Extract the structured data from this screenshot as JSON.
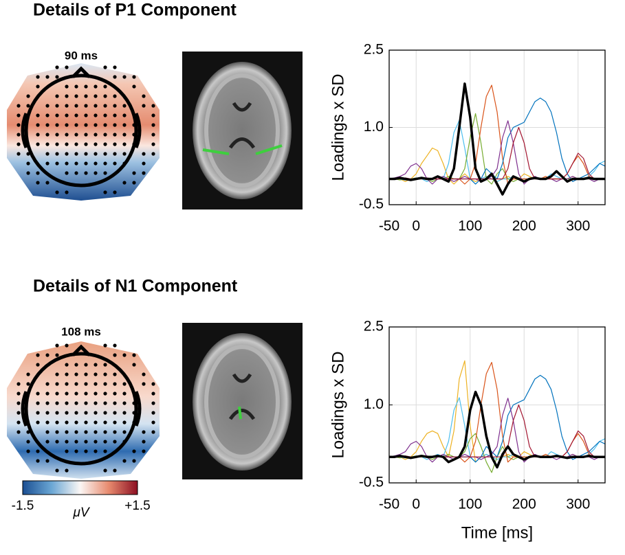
{
  "panels": [
    {
      "title": "Details of P1 Component",
      "time_label": "90 ms"
    },
    {
      "title": "Details of N1 Component",
      "time_label": "108 ms"
    }
  ],
  "colorbar": {
    "min": -1.5,
    "max": {
      "value": 1.5,
      "label": "+1.5"
    },
    "unit": "μV"
  },
  "chart_data": [
    {
      "type": "line",
      "ylabel": "Loadings x SD",
      "xlim": [
        -50,
        350
      ],
      "xticks": [
        -50,
        0,
        100,
        200,
        300
      ],
      "ylim": [
        -0.5,
        2.5
      ],
      "yticks": [
        -0.5,
        {
          "value": 1,
          "label": "1.0"
        },
        2.5
      ],
      "grid": true,
      "x": [
        -50,
        -40,
        -30,
        -20,
        -10,
        0,
        10,
        20,
        30,
        40,
        50,
        60,
        70,
        80,
        90,
        100,
        110,
        120,
        130,
        140,
        150,
        160,
        170,
        180,
        190,
        200,
        210,
        220,
        230,
        240,
        250,
        260,
        270,
        280,
        290,
        300,
        310,
        320,
        330,
        340,
        350
      ],
      "series": [
        {
          "color": "#edb120",
          "values": [
            0,
            0.02,
            0,
            -0.05,
            0,
            0.1,
            0.3,
            0.45,
            0.6,
            0.55,
            0.3,
            0,
            -0.1,
            0,
            0.1,
            0,
            -0.05,
            0,
            0.05,
            0,
            -0.05,
            0,
            0.05,
            0,
            0,
            0.1,
            0.05,
            0,
            0,
            0.02,
            0,
            0,
            0,
            0,
            0.05,
            0,
            0,
            0,
            0,
            0,
            0
          ]
        },
        {
          "color": "#4dbeee",
          "values": [
            0,
            0,
            0,
            0.02,
            0,
            0,
            0,
            -0.05,
            0,
            0.05,
            0,
            0.3,
            0.9,
            1.14,
            0.6,
            0,
            -0.1,
            0,
            0.05,
            0,
            -0.05,
            0,
            0,
            0.05,
            0,
            0,
            0,
            0,
            0,
            0,
            0.1,
            0.05,
            0,
            0,
            0,
            0,
            0,
            0.05,
            0.15,
            0.3,
            0.35
          ]
        },
        {
          "color": "#77ac30",
          "values": [
            0,
            0,
            -0.02,
            0,
            0,
            0.02,
            0,
            0,
            -0.05,
            0,
            0,
            0.05,
            0,
            0,
            0.2,
            0.8,
            1.27,
            0.7,
            0,
            -0.1,
            0.1,
            0.2,
            0,
            -0.05,
            0,
            0,
            0,
            0.02,
            0,
            0,
            0,
            0,
            0,
            0,
            0,
            0,
            0,
            0,
            0,
            0,
            0
          ]
        },
        {
          "color": "#d95319",
          "values": [
            0,
            0,
            0,
            0,
            0,
            0,
            0,
            0,
            0,
            0,
            0,
            0,
            0,
            0,
            -0.1,
            0,
            0.3,
            1.0,
            1.6,
            1.82,
            1.3,
            0.4,
            -0.1,
            0,
            0,
            0,
            0,
            0,
            0,
            0.05,
            0,
            0,
            0,
            0.1,
            0.3,
            0.45,
            0.3,
            0.05,
            0,
            0,
            0
          ]
        },
        {
          "color": "#0072bd",
          "values": [
            0,
            0.02,
            0,
            -0.02,
            0,
            0,
            0.02,
            0,
            0,
            0,
            0,
            0,
            0,
            0,
            0,
            0,
            -0.1,
            0,
            0.2,
            0.1,
            0,
            0.3,
            0.8,
            1.0,
            1.05,
            1.1,
            1.3,
            1.5,
            1.57,
            1.5,
            1.3,
            0.9,
            0.4,
            0.1,
            -0.05,
            0,
            0.05,
            0.1,
            0.2,
            0.3,
            0.25
          ]
        },
        {
          "color": "#7e2f8e",
          "values": [
            0,
            0.02,
            0.05,
            0.1,
            0.25,
            0.3,
            0.2,
            0,
            -0.1,
            0,
            0.05,
            0,
            -0.05,
            0,
            0.05,
            0,
            0,
            -0.05,
            0,
            0.05,
            0.2,
            0.8,
            1.13,
            0.7,
            0.1,
            -0.1,
            0,
            0.05,
            0,
            0,
            0,
            -0.05,
            0,
            0,
            0.05,
            0,
            0,
            0,
            -0.05,
            0,
            0
          ]
        },
        {
          "color": "#a2142f",
          "values": [
            0,
            0,
            0,
            0.02,
            0,
            0,
            0,
            0.02,
            0,
            0,
            0,
            0,
            0,
            0,
            0,
            0,
            0,
            0,
            0,
            0,
            0,
            0,
            0.2,
            0.7,
            1.0,
            0.7,
            0.2,
            0,
            0,
            0,
            0,
            0,
            0,
            0.1,
            0.3,
            0.5,
            0.4,
            0.1,
            0,
            0,
            0
          ]
        },
        {
          "color": "#000000",
          "values": [
            0,
            0,
            0.02,
            0,
            -0.02,
            0,
            0.02,
            0,
            0,
            0.05,
            0,
            -0.05,
            0.2,
            1.0,
            1.85,
            1.2,
            0.2,
            -0.05,
            0,
            0.1,
            -0.1,
            -0.3,
            -0.1,
            0.05,
            0,
            -0.05,
            0,
            0.02,
            0,
            0,
            0.05,
            0.15,
            0.05,
            -0.05,
            0,
            0,
            0,
            0.02,
            0,
            0,
            0
          ]
        }
      ]
    },
    {
      "type": "line",
      "ylabel": "Loadings x SD",
      "xlabel": "Time [ms]",
      "xlim": [
        -50,
        350
      ],
      "xticks": [
        -50,
        0,
        100,
        200,
        300
      ],
      "ylim": [
        -0.5,
        2.5
      ],
      "yticks": [
        -0.5,
        {
          "value": 1,
          "label": "1.0"
        },
        2.5
      ],
      "grid": true,
      "x": [
        -50,
        -40,
        -30,
        -20,
        -10,
        0,
        10,
        20,
        30,
        40,
        50,
        60,
        70,
        80,
        90,
        100,
        110,
        120,
        130,
        140,
        150,
        160,
        170,
        180,
        190,
        200,
        210,
        220,
        230,
        240,
        250,
        260,
        270,
        280,
        290,
        300,
        310,
        320,
        330,
        340,
        350
      ],
      "series": [
        {
          "color": "#edb120",
          "values": [
            0,
            0.02,
            0,
            -0.05,
            0,
            0.1,
            0.3,
            0.45,
            0.5,
            0.45,
            0.2,
            0,
            0.5,
            1.5,
            1.85,
            0.6,
            -0.1,
            0,
            0.05,
            0,
            -0.05,
            0,
            0.05,
            0,
            0,
            0.1,
            0.05,
            0,
            0,
            0.02,
            0,
            0,
            0,
            0,
            0.05,
            0,
            0,
            0,
            0,
            0,
            0
          ]
        },
        {
          "color": "#4dbeee",
          "values": [
            0,
            0,
            0,
            0.02,
            0,
            0,
            0,
            -0.05,
            0,
            0.05,
            0,
            0.3,
            0.9,
            1.14,
            0.6,
            0,
            -0.1,
            0,
            0.05,
            0,
            -0.05,
            0,
            0,
            0.05,
            0,
            0,
            0,
            0,
            0,
            0,
            0.1,
            0.05,
            0,
            0,
            0,
            0,
            0,
            0.05,
            0.15,
            0.3,
            0.35
          ]
        },
        {
          "color": "#77ac30",
          "values": [
            0,
            0,
            -0.02,
            0,
            0,
            0.02,
            0,
            0,
            -0.05,
            0,
            0,
            0.05,
            0,
            0,
            0.1,
            0.35,
            0.45,
            0.2,
            -0.1,
            -0.3,
            0,
            0.2,
            0,
            -0.05,
            0,
            0,
            0,
            0.02,
            0,
            0,
            0,
            0,
            0,
            0,
            0,
            0,
            0,
            0,
            0,
            0,
            0
          ]
        },
        {
          "color": "#d95319",
          "values": [
            0,
            0,
            0,
            0,
            0,
            0,
            0,
            0,
            0,
            0,
            0,
            0,
            0,
            0,
            -0.1,
            0,
            0.3,
            1.0,
            1.6,
            1.82,
            1.3,
            0.4,
            -0.1,
            0,
            0,
            0,
            0,
            0,
            0,
            0.05,
            0,
            0,
            0,
            0.1,
            0.3,
            0.45,
            0.3,
            0.05,
            0,
            0,
            0
          ]
        },
        {
          "color": "#0072bd",
          "values": [
            0,
            0.02,
            0,
            -0.02,
            0,
            0,
            0.02,
            0,
            0,
            0,
            0,
            0,
            0,
            0,
            0,
            0,
            -0.1,
            0,
            0.2,
            0.1,
            0,
            0.3,
            0.8,
            1.0,
            1.05,
            1.1,
            1.3,
            1.5,
            1.57,
            1.5,
            1.3,
            0.9,
            0.4,
            0.1,
            -0.05,
            0,
            0.05,
            0.1,
            0.2,
            0.3,
            0.25
          ]
        },
        {
          "color": "#7e2f8e",
          "values": [
            0,
            0.02,
            0.05,
            0.1,
            0.25,
            0.3,
            0.2,
            0,
            -0.1,
            0,
            0.05,
            0,
            -0.05,
            0,
            0.05,
            0,
            0,
            -0.05,
            0,
            0.05,
            0.2,
            0.8,
            1.13,
            0.7,
            0.1,
            -0.1,
            0,
            0.05,
            0,
            0,
            0,
            -0.05,
            0,
            0,
            0.05,
            0,
            0,
            0,
            -0.05,
            0,
            0
          ]
        },
        {
          "color": "#a2142f",
          "values": [
            0,
            0,
            0,
            0.02,
            0,
            0,
            0,
            0.02,
            0,
            0,
            0,
            0,
            0,
            0,
            0,
            0,
            0,
            0,
            0,
            0,
            0,
            0,
            0.2,
            0.7,
            1.0,
            0.7,
            0.2,
            0,
            0,
            0,
            0,
            0,
            0,
            0.1,
            0.3,
            0.5,
            0.4,
            0.1,
            0,
            0,
            0
          ]
        },
        {
          "color": "#000000",
          "values": [
            0,
            0,
            0.02,
            0,
            -0.02,
            0,
            0.02,
            0,
            0,
            0.02,
            0,
            -0.1,
            -0.05,
            0,
            0.2,
            0.9,
            1.25,
            1.0,
            0.4,
            0,
            -0.2,
            0.05,
            0.2,
            0.05,
            0,
            -0.05,
            0,
            0.02,
            0,
            0,
            0,
            0.02,
            0,
            -0.02,
            0,
            0,
            0,
            0.02,
            0,
            0,
            0
          ]
        }
      ]
    }
  ]
}
